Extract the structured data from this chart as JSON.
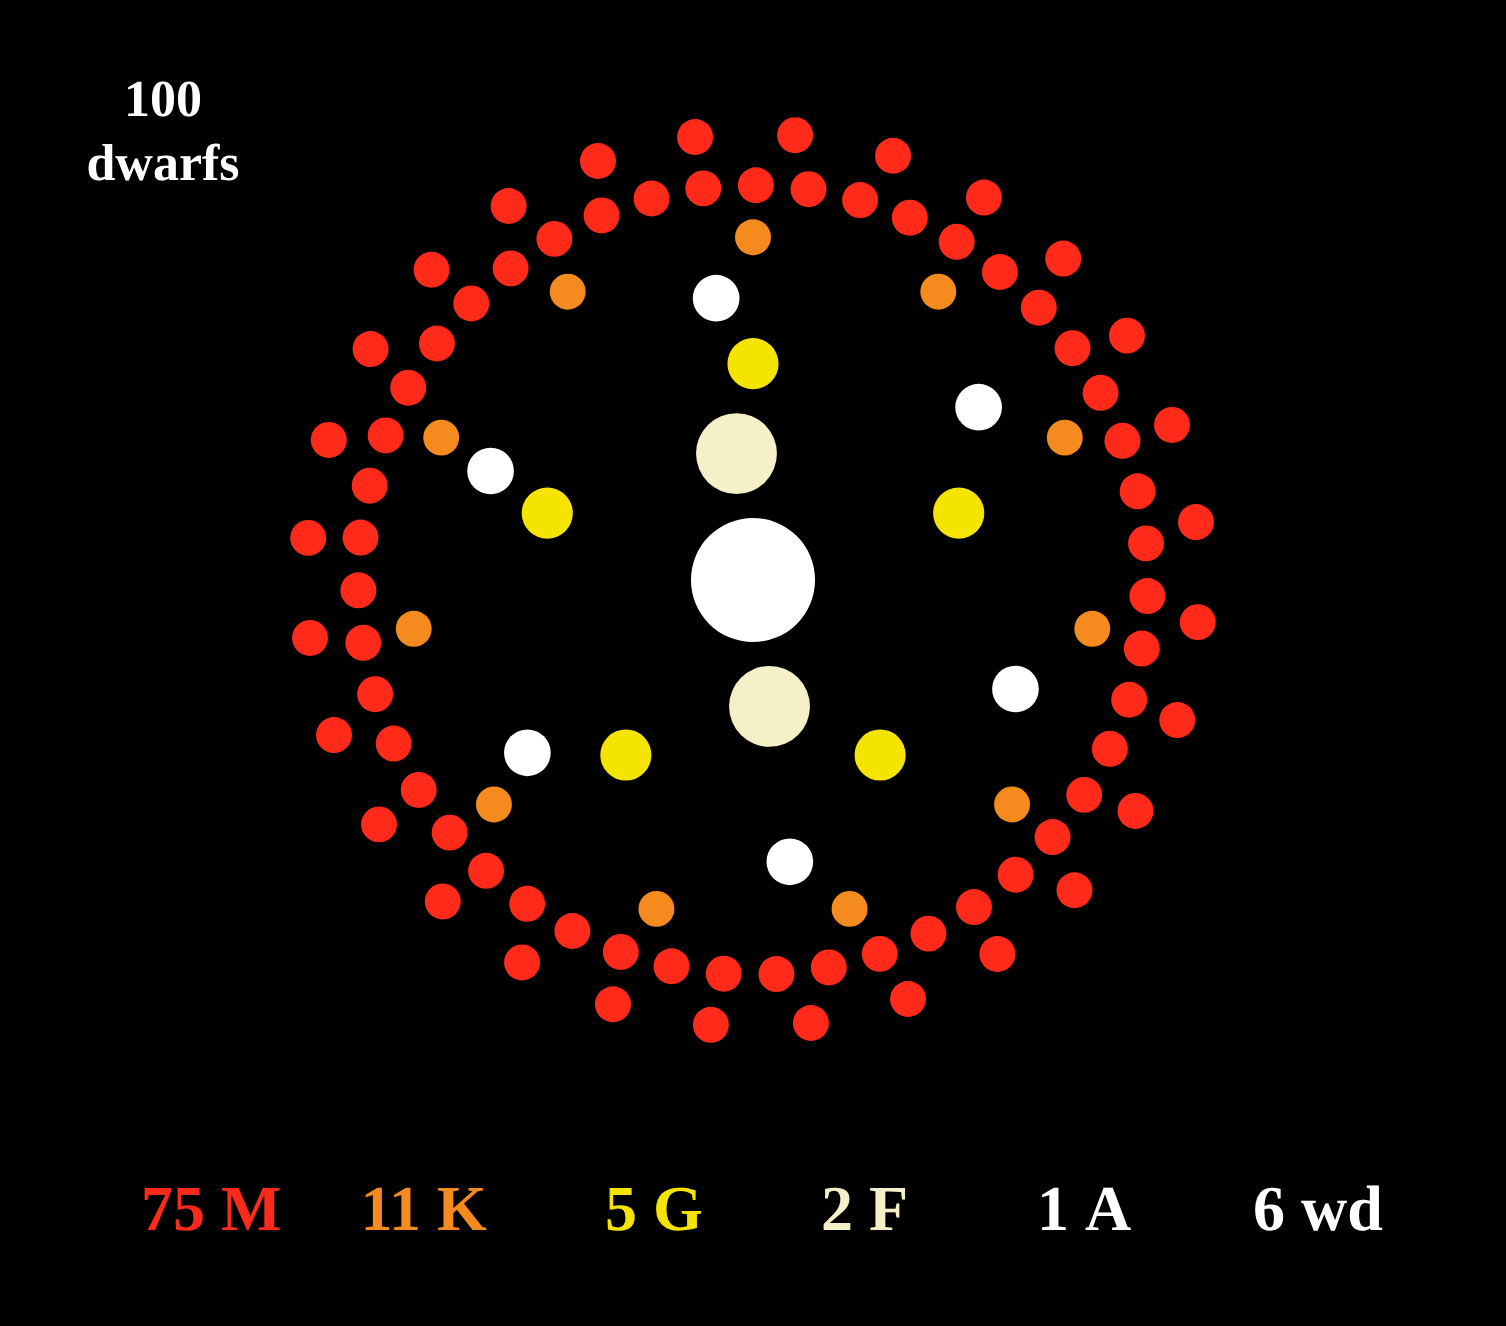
{
  "chart_data": {
    "type": "other",
    "title": "100 dwarfs",
    "categories": [
      "M",
      "K",
      "G",
      "F",
      "A",
      "wd"
    ],
    "values": [
      75,
      11,
      5,
      2,
      1,
      6
    ],
    "data_labels": true,
    "colors": [
      "#ff2a1a",
      "#f58a1e",
      "#f5e400",
      "#f5f0c8",
      "#ffffff",
      "#ffffff"
    ]
  }
}
